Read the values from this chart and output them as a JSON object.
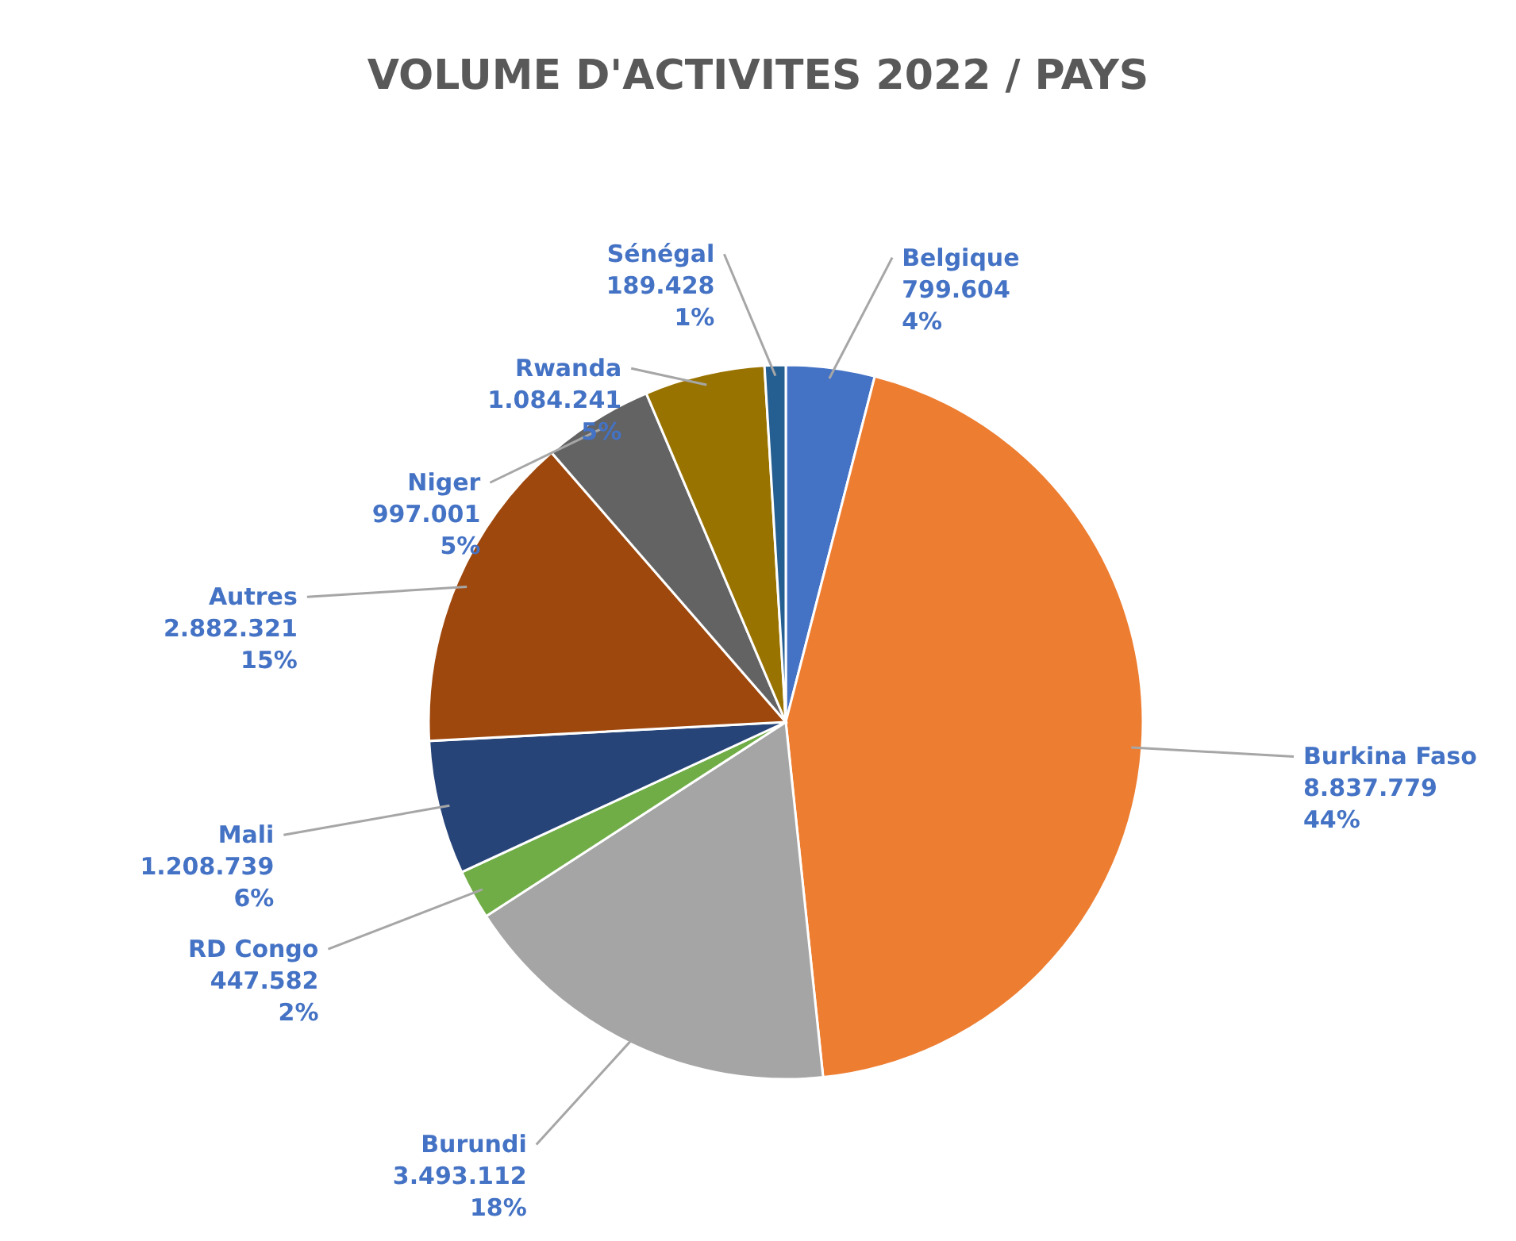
{
  "chart_data": {
    "type": "pie",
    "title": "VOLUME D'ACTIVITES 2022 / PAYS",
    "categories": [
      "Belgique",
      "Burkina Faso",
      "Burundi",
      "RD Congo",
      "Mali",
      "Autres",
      "Niger",
      "Rwanda",
      "Sénégal"
    ],
    "values": [
      799604,
      8837779,
      3493112,
      447582,
      1208739,
      2882321,
      997001,
      1084241,
      189428
    ],
    "value_labels": [
      "799.604\n4%",
      "8.837.779\n44%",
      "3.493.112\n18%",
      "447.582\n2%",
      "1.208.739\n6%",
      "2.882.321\n15%",
      "997.001\n5%",
      "1.084.241\n5%",
      "189.428\n1%"
    ],
    "colors": [
      "#4472c4",
      "#ed7d31",
      "#a5a5a5",
      "#70ad47",
      "#264478",
      "#9e480e",
      "#636363",
      "#997300",
      "#255e91"
    ]
  }
}
